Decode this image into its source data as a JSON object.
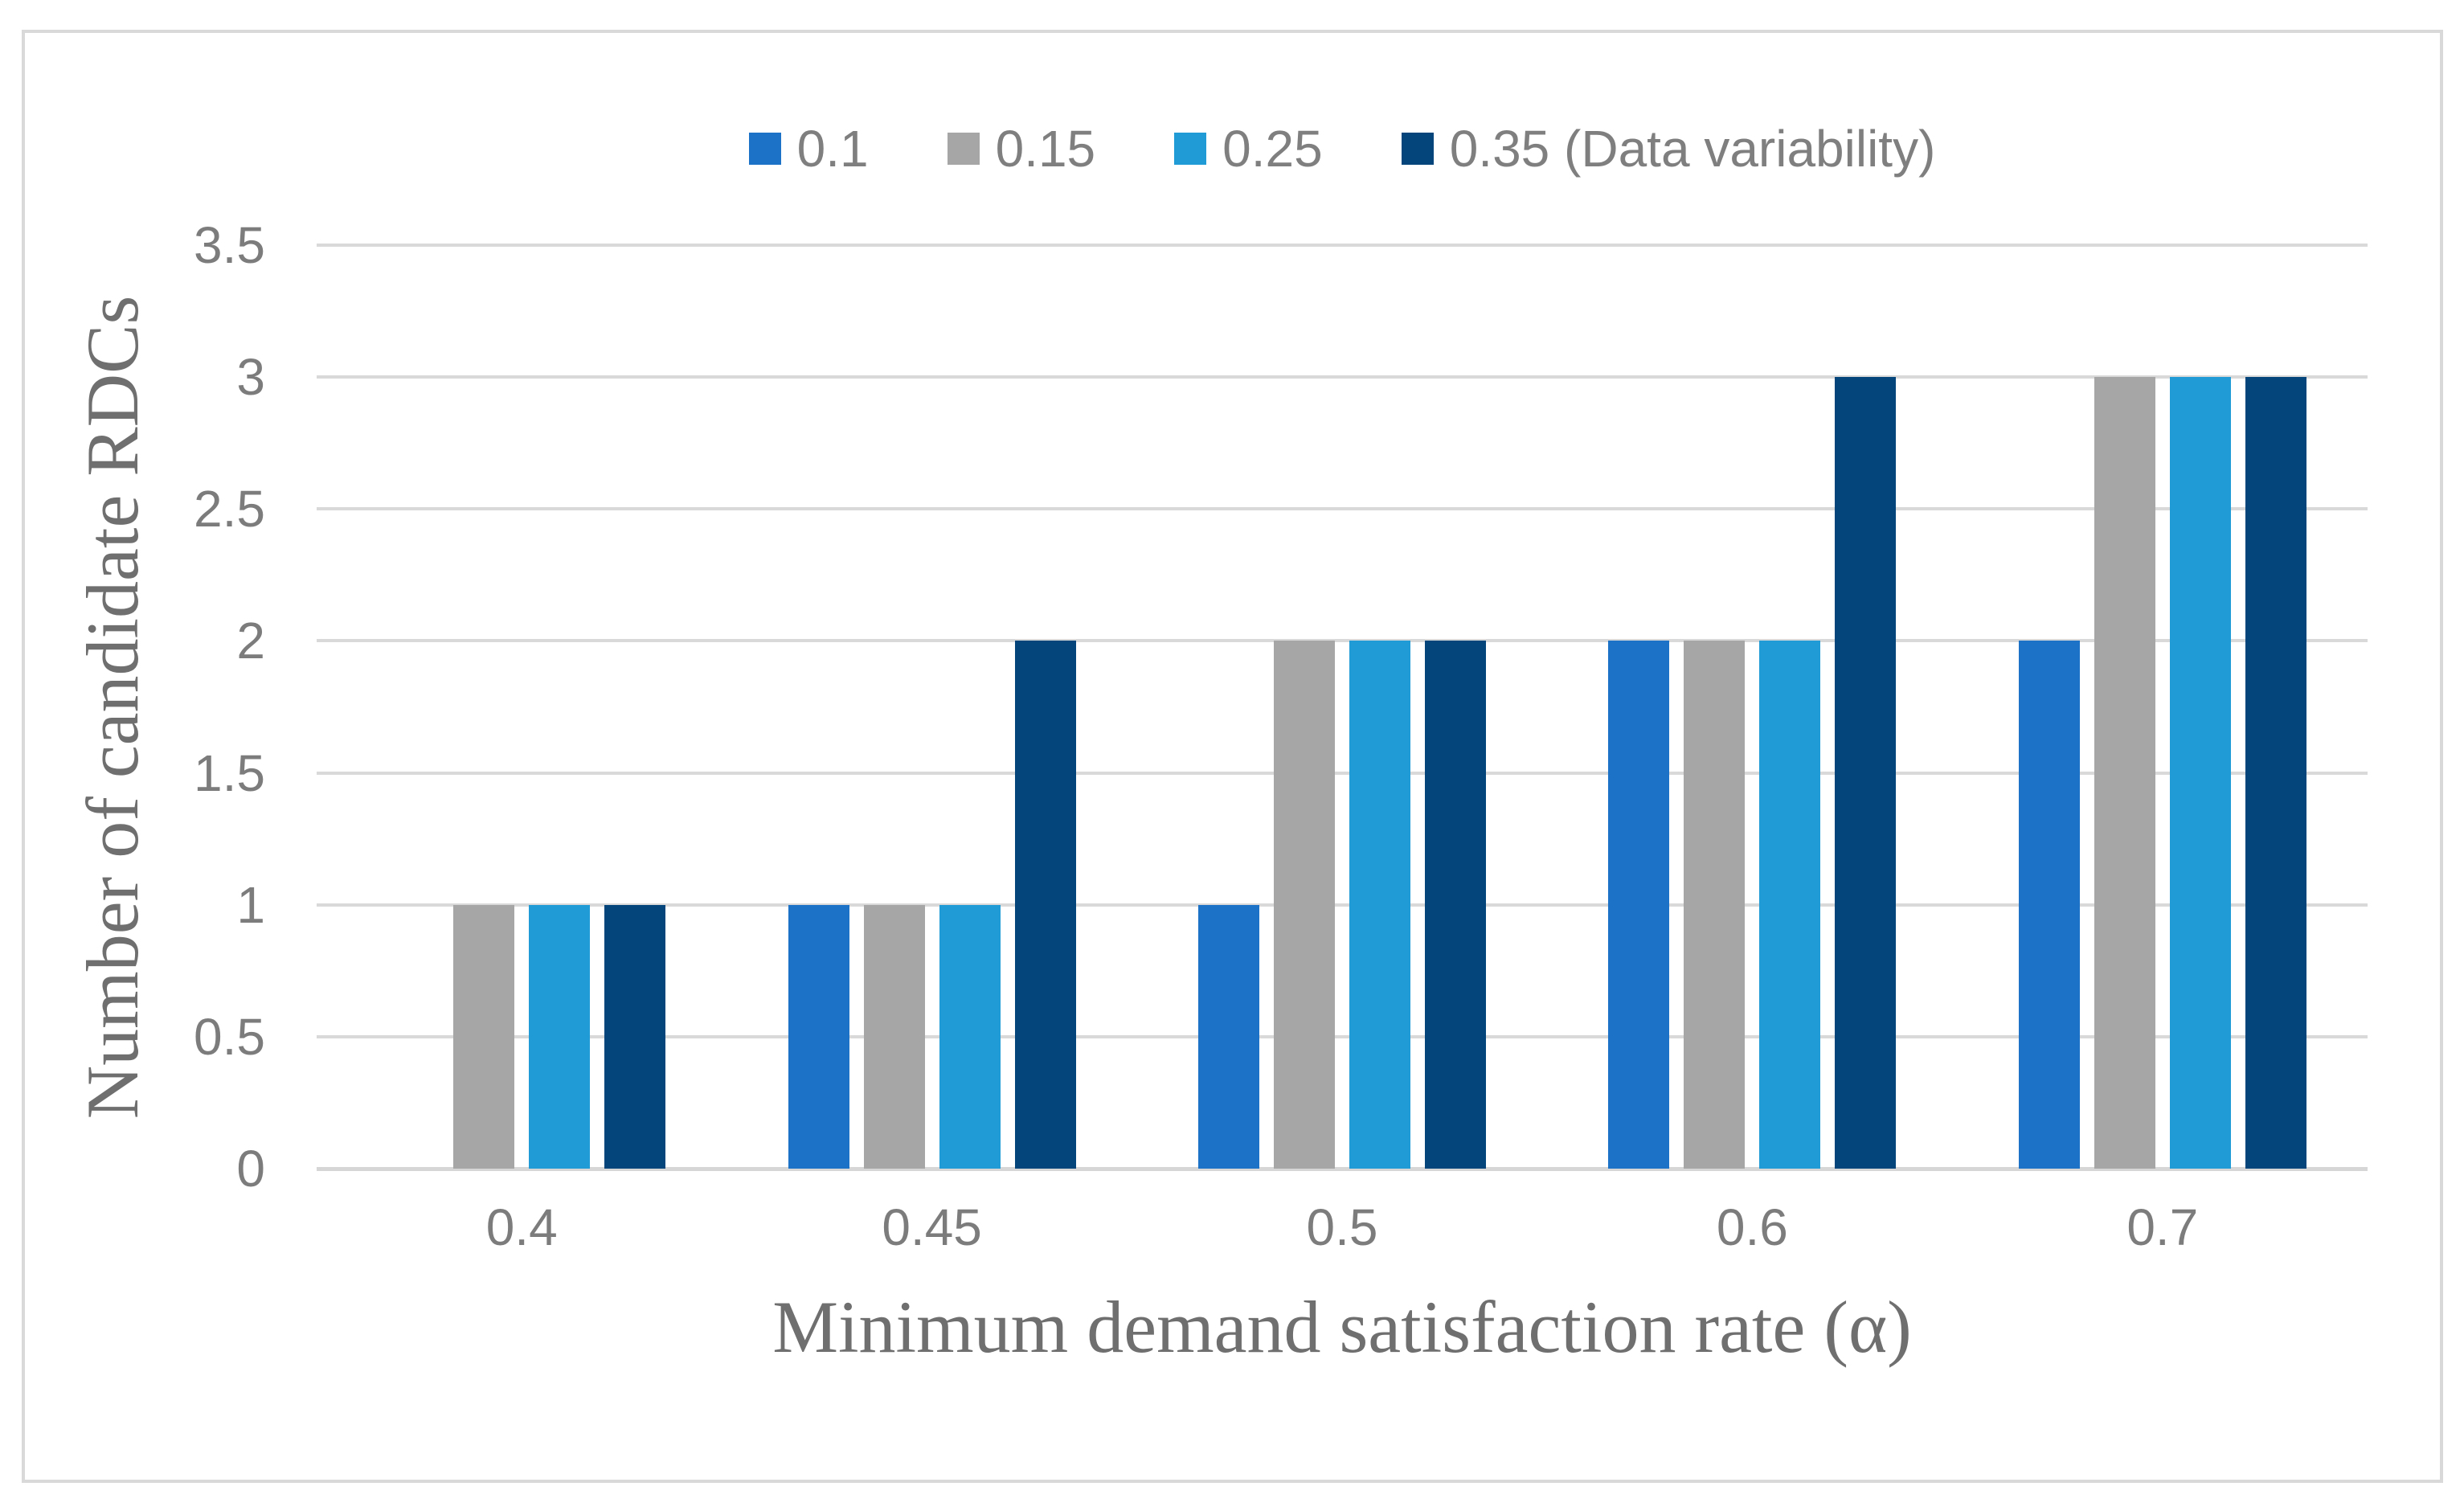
{
  "figure": {
    "background": "#ffffff",
    "border_color": "#d9d9d9",
    "gridline_color": "#d9d9d9",
    "tick_text_color": "#7c7c7c",
    "axis_title_color": "#6f6f6f"
  },
  "chart_data": {
    "type": "bar",
    "title": "",
    "categories": [
      "0.4",
      "0.45",
      "0.5",
      "0.6",
      "0.7"
    ],
    "series": [
      {
        "name": "0.1",
        "color": "#1b72c6",
        "values": [
          0,
          1,
          1,
          2,
          2
        ]
      },
      {
        "name": "0.15",
        "color": "#a6a6a6",
        "values": [
          1,
          1,
          2,
          2,
          3
        ]
      },
      {
        "name": "0.25",
        "color": "#209bd5",
        "values": [
          1,
          1,
          2,
          2,
          3
        ]
      },
      {
        "name": "0.35 (Data variability)",
        "color": "#04457c",
        "values": [
          1,
          2,
          2,
          3,
          3
        ]
      }
    ],
    "xlabel": "Minimum demand satisfaction rate (α)",
    "ylabel": "Number of candidate RDCs",
    "ylim": [
      0,
      3.5
    ],
    "ytick_step": 0.5,
    "yticks": [
      "0",
      "0.5",
      "1",
      "1.5",
      "2",
      "2.5",
      "3",
      "3.5"
    ],
    "grid": "horizontal",
    "legend_position": "top"
  }
}
